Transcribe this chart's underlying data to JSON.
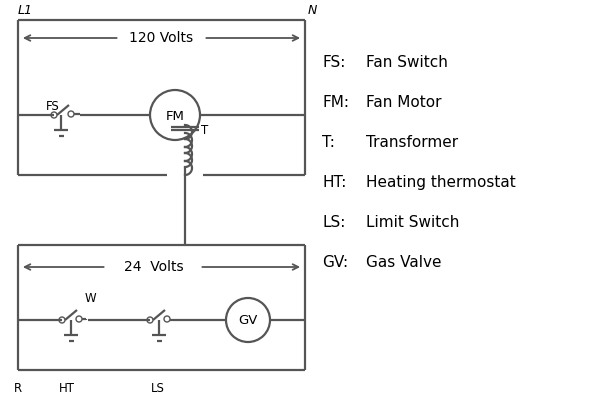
{
  "bg_color": "#ffffff",
  "line_color": "#555555",
  "text_color": "#000000",
  "legend_items": [
    [
      "FS:",
      "Fan Switch"
    ],
    [
      "FM:",
      "Fan Motor"
    ],
    [
      "T:",
      "Transformer"
    ],
    [
      "HT:",
      "Heating thermostat"
    ],
    [
      "LS:",
      "Limit Switch"
    ],
    [
      "GV:",
      "Gas Valve"
    ]
  ]
}
